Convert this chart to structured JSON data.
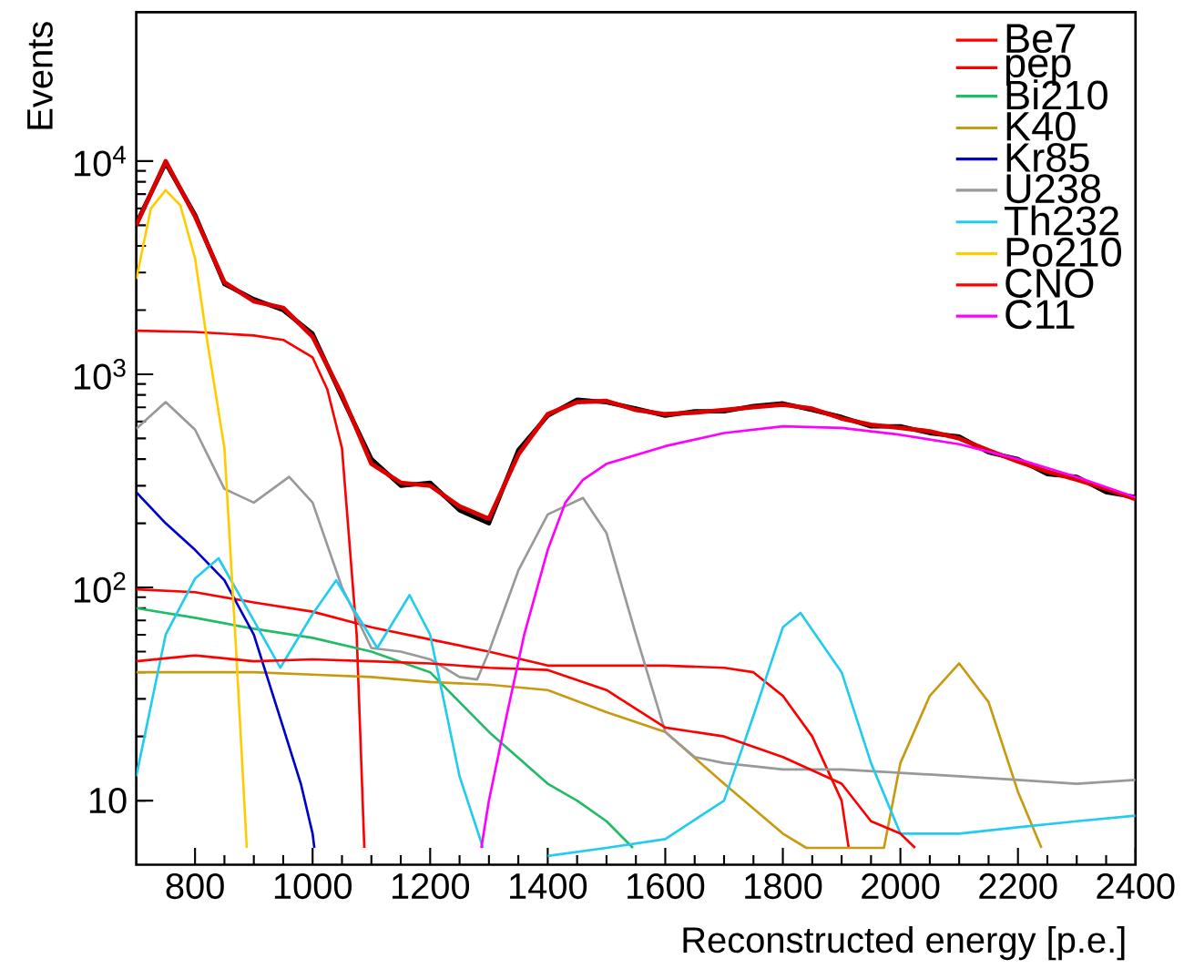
{
  "chart_data": {
    "type": "line",
    "xlabel": "Reconstructed energy [p.e.]",
    "ylabel": "Events",
    "log": "y",
    "xlim": [
      700,
      2400
    ],
    "ylim": [
      5,
      50000
    ],
    "xticks": [
      800,
      1000,
      1200,
      1400,
      1600,
      1800,
      2000,
      2200,
      2400
    ],
    "yticks": [
      10,
      {
        "value": 100,
        "label": "10$^{2}$"
      },
      {
        "value": 1000,
        "label": "10$^{3}$"
      },
      {
        "value": 10000,
        "label": "10$^{4}$"
      }
    ],
    "grid": false,
    "legend": "top right",
    "line_style": "solid",
    "marker": "none",
    "x": [
      700,
      750,
      800,
      850,
      900,
      950,
      1000,
      1050,
      1100,
      1150,
      1200,
      1250,
      1300,
      1350,
      1400,
      1450,
      1500,
      1550,
      1600,
      1650,
      1700,
      1750,
      1800,
      1850,
      1900,
      1950,
      2000,
      2050,
      2100,
      2150,
      2200,
      2250,
      2300,
      2350,
      2400
    ],
    "series": [
      {
        "color": "#000000",
        "values": [
          5100,
          9800,
          5600,
          2650,
          2250,
          2000,
          1550,
          780,
          400,
          300,
          310,
          230,
          200,
          440,
          640,
          760,
          740,
          690,
          640,
          670,
          670,
          710,
          730,
          680,
          630,
          570,
          570,
          530,
          510,
          430,
          400,
          340,
          330,
          280,
          265
        ]
      },
      {
        "color": "#dd0000",
        "values": [
          5000,
          10000,
          5500,
          2700,
          2200,
          2050,
          1500,
          800,
          380,
          310,
          300,
          240,
          210,
          420,
          650,
          740,
          750,
          680,
          650,
          660,
          680,
          700,
          720,
          690,
          620,
          580,
          560,
          540,
          500,
          440,
          390,
          350,
          320,
          290,
          260
        ]
      },
      {
        "name": "Be7",
        "color": "#ff0000",
        "x": [
          700,
          800,
          900,
          950,
          1000,
          1025,
          1050,
          1075,
          1088
        ],
        "values": [
          1600,
          1580,
          1520,
          1450,
          1200,
          850,
          450,
          60,
          6
        ]
      },
      {
        "name": "pep",
        "color": "#ff0000",
        "x": [
          700,
          800,
          900,
          1000,
          1100,
          1200,
          1300,
          1400,
          1500,
          1600,
          1700,
          1750,
          1800,
          1850,
          1900,
          1912
        ],
        "values": [
          98,
          95,
          85,
          77,
          65,
          57,
          50,
          43,
          43,
          43,
          42,
          40,
          31,
          20,
          10,
          6
        ]
      },
      {
        "name": "Bi210",
        "color": "#22bb66",
        "x": [
          700,
          800,
          900,
          1000,
          1100,
          1200,
          1300,
          1400,
          1450,
          1500,
          1545
        ],
        "values": [
          80,
          72,
          64,
          58,
          50,
          40,
          21,
          12,
          10,
          8,
          6
        ]
      },
      {
        "name": "K40",
        "color": "#c89a10",
        "x": [
          700,
          800,
          900,
          1000,
          1100,
          1200,
          1300,
          1400,
          1500,
          1600,
          1700,
          1800,
          1840,
          1972,
          2000,
          2050,
          2100,
          2150,
          2200,
          2240
        ],
        "values": [
          40,
          40,
          40,
          39,
          38,
          36,
          35,
          33,
          26,
          21,
          12,
          7,
          6,
          6,
          15,
          31,
          44,
          29,
          11,
          6
        ]
      },
      {
        "name": "Kr85",
        "color": "#0000cc",
        "x": [
          700,
          750,
          800,
          850,
          900,
          950,
          980,
          1000,
          1003
        ],
        "values": [
          280,
          200,
          150,
          108,
          60,
          22,
          12,
          7,
          6
        ]
      },
      {
        "name": "U238",
        "color": "#999999",
        "x": [
          700,
          750,
          800,
          850,
          900,
          960,
          1000,
          1050,
          1100,
          1150,
          1200,
          1250,
          1280,
          1300,
          1350,
          1400,
          1460,
          1500,
          1550,
          1600,
          1650,
          1700,
          1800,
          1900,
          2000,
          2100,
          2200,
          2300,
          2400
        ],
        "values": [
          555,
          740,
          550,
          290,
          250,
          330,
          250,
          100,
          52,
          50,
          46,
          38,
          37,
          50,
          120,
          220,
          263,
          180,
          60,
          21,
          16,
          15,
          14,
          14,
          13.5,
          13,
          12.5,
          12,
          12.5
        ]
      },
      {
        "name": "Th232",
        "color": "#22ccee",
        "x": [
          700,
          750,
          800,
          840,
          900,
          945,
          1000,
          1040,
          1110,
          1165,
          1200,
          1250,
          1290,
          1310,
          1340,
          1400,
          1500,
          1600,
          1700,
          1750,
          1800,
          1830,
          1900,
          1950,
          2000,
          2100,
          2200,
          2300,
          2400
        ],
        "values": [
          13,
          60,
          110,
          137,
          70,
          42,
          75,
          108,
          52,
          92,
          60,
          13,
          6,
          null,
          null,
          5.5,
          6,
          6.6,
          10,
          25,
          65,
          76,
          40,
          15,
          7,
          7,
          7.5,
          8,
          8.5
        ]
      },
      {
        "name": "Po210",
        "color": "#ffcc00",
        "x": [
          700,
          725,
          750,
          775,
          800,
          818,
          850,
          870,
          888
        ],
        "values": [
          2800,
          6000,
          7300,
          6200,
          3500,
          1600,
          450,
          50,
          6
        ]
      },
      {
        "name": "CNO",
        "color": "#ff0000",
        "x": [
          700,
          800,
          900,
          1000,
          1100,
          1200,
          1300,
          1400,
          1500,
          1600,
          1700,
          1800,
          1900,
          1950,
          2000,
          2025
        ],
        "values": [
          45,
          48,
          45,
          46,
          45,
          44,
          42,
          41,
          33,
          22,
          20,
          16,
          12,
          8,
          7,
          6
        ]
      },
      {
        "name": "C11",
        "color": "#ff00ff",
        "x": [
          1287,
          1300,
          1330,
          1360,
          1400,
          1430,
          1460,
          1500,
          1600,
          1700,
          1800,
          1900,
          2000,
          2100,
          2200,
          2300,
          2400
        ],
        "values": [
          6,
          10,
          25,
          60,
          150,
          250,
          320,
          380,
          460,
          530,
          570,
          560,
          520,
          470,
          400,
          330,
          265
        ]
      }
    ]
  }
}
